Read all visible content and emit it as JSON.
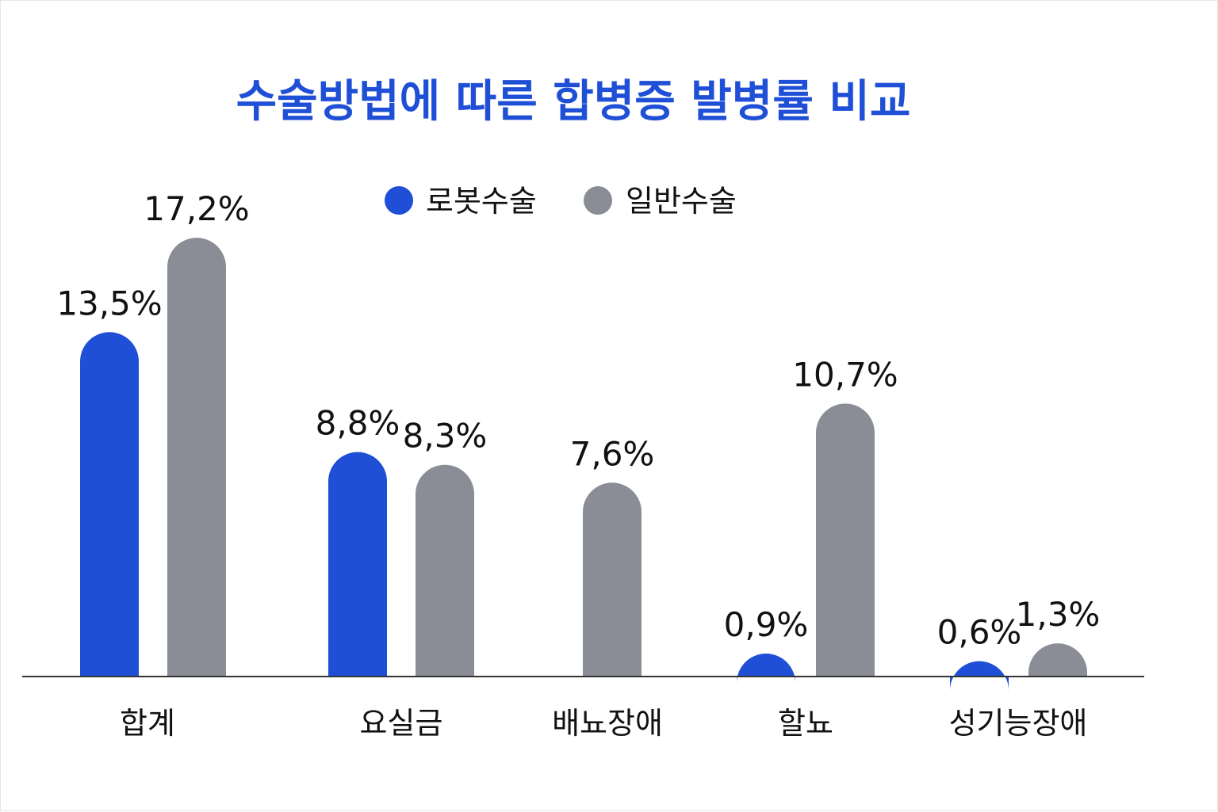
{
  "chart_data": {
    "type": "bar",
    "title": "수술방법에 따른 합병증 발병률 비교",
    "categories": [
      "합계",
      "요실금",
      "배뇨장애",
      "할뇨",
      "성기능장애"
    ],
    "series": [
      {
        "name": "로봇수술",
        "color": "#1f4fd6",
        "values": [
          13.5,
          8.8,
          null,
          0.9,
          0.6
        ],
        "labels": [
          "13,5%",
          "8,8%",
          "",
          "0,9%",
          "0,6%"
        ]
      },
      {
        "name": "일반수술",
        "color": "#8a8d96",
        "values": [
          17.2,
          8.3,
          7.6,
          10.7,
          1.3
        ],
        "labels": [
          "17,2%",
          "8,3%",
          "7,6%",
          "10,7%",
          "1,3%"
        ]
      }
    ],
    "ylim": [
      0,
      18
    ],
    "grid": false,
    "legend": "top-center",
    "title_color": "#1f4fd6",
    "axis_color": "#333333"
  }
}
